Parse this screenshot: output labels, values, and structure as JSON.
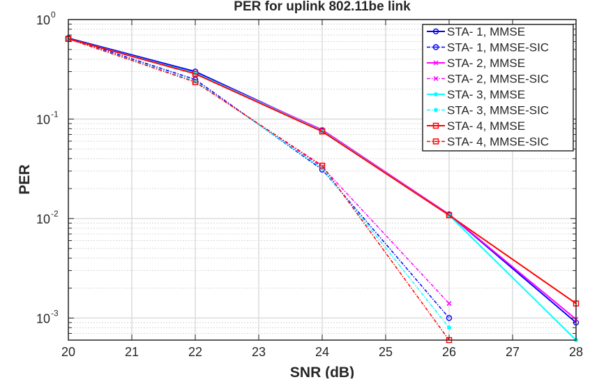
{
  "chart_data": {
    "type": "line",
    "title": "PER for uplink 802.11be link",
    "xlabel": "SNR (dB)",
    "ylabel": "PER",
    "xlim": [
      20,
      28
    ],
    "ylim": [
      0.0006,
      1
    ],
    "yscale": "log",
    "grid": true,
    "legend_position": "top-right",
    "xticks": [
      "20",
      "21",
      "22",
      "23",
      "24",
      "25",
      "26",
      "27",
      "28"
    ],
    "yticks": [
      {
        "base": "10",
        "exp": "0",
        "value": 1
      },
      {
        "base": "10",
        "exp": "-1",
        "value": 0.1
      },
      {
        "base": "10",
        "exp": "-2",
        "value": 0.01
      },
      {
        "base": "10",
        "exp": "-3",
        "value": 0.001
      }
    ],
    "series": [
      {
        "name": "STA- 1, MMSE",
        "color": "#0000ff",
        "style": "solid",
        "marker": "circle",
        "x": [
          20,
          22,
          24,
          26,
          28
        ],
        "y": [
          0.65,
          0.3,
          0.077,
          0.011,
          0.0009
        ]
      },
      {
        "name": "STA- 1, MMSE-SIC",
        "color": "#0000ff",
        "style": "dashdot",
        "marker": "circle",
        "x": [
          20,
          22,
          24,
          26
        ],
        "y": [
          0.65,
          0.25,
          0.031,
          0.001
        ]
      },
      {
        "name": "STA- 2, MMSE",
        "color": "#ff00ff",
        "style": "solid",
        "marker": "x",
        "x": [
          20,
          22,
          24,
          26,
          28
        ],
        "y": [
          0.64,
          0.29,
          0.078,
          0.011,
          0.00097
        ]
      },
      {
        "name": "STA- 2, MMSE-SIC",
        "color": "#ff00ff",
        "style": "dashdot",
        "marker": "x",
        "x": [
          20,
          22,
          24,
          26
        ],
        "y": [
          0.64,
          0.24,
          0.033,
          0.0014
        ]
      },
      {
        "name": "STA- 3, MMSE",
        "color": "#00ffff",
        "style": "solid",
        "marker": "dot",
        "x": [
          20,
          22,
          24,
          26,
          28
        ],
        "y": [
          0.64,
          0.29,
          0.076,
          0.0108,
          0.0006
        ]
      },
      {
        "name": "STA- 3, MMSE-SIC",
        "color": "#00ffff",
        "style": "dashdot",
        "marker": "dot",
        "x": [
          20,
          22,
          24,
          26
        ],
        "y": [
          0.64,
          0.24,
          0.032,
          0.0008
        ]
      },
      {
        "name": "STA- 4, MMSE",
        "color": "#ff0000",
        "style": "solid",
        "marker": "square",
        "x": [
          20,
          22,
          24,
          26,
          28
        ],
        "y": [
          0.64,
          0.285,
          0.075,
          0.0108,
          0.0014
        ]
      },
      {
        "name": "STA- 4, MMSE-SIC",
        "color": "#ff0000",
        "style": "dashdot",
        "marker": "square",
        "x": [
          20,
          22,
          24,
          26
        ],
        "y": [
          0.64,
          0.235,
          0.034,
          0.0006
        ]
      }
    ]
  }
}
